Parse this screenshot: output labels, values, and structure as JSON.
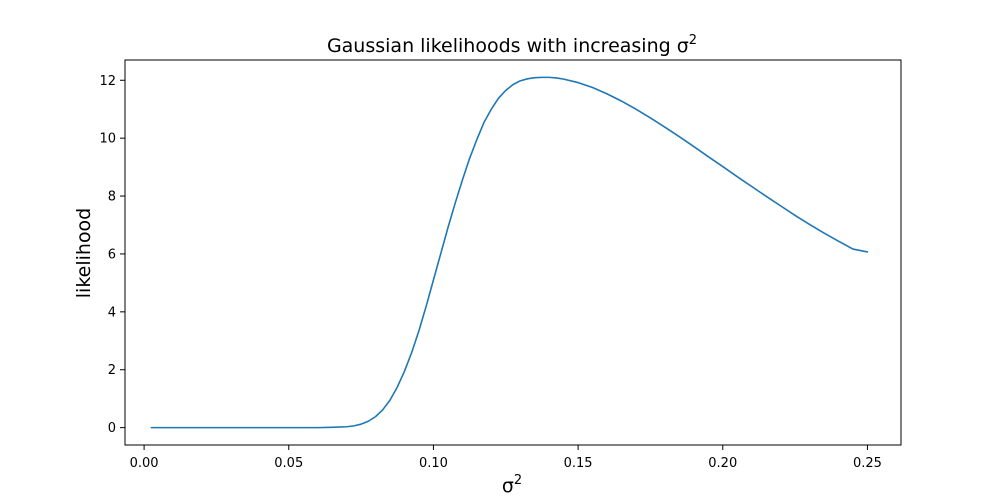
{
  "chart_data": {
    "type": "line",
    "title": "Gaussian likelihoods with increasing σ²",
    "title_parts": {
      "main": "Gaussian likelihoods with increasing σ",
      "sup": "2"
    },
    "xlabel": "σ²",
    "xlabel_parts": {
      "main": "σ",
      "sup": "2"
    },
    "ylabel": "likelihood",
    "xlim": [
      -0.0066,
      0.2616
    ],
    "ylim": [
      -0.6,
      12.7
    ],
    "xticks": [
      0.0,
      0.05,
      0.1,
      0.15,
      0.2,
      0.25
    ],
    "xtick_labels": [
      "0.00",
      "0.05",
      "0.10",
      "0.15",
      "0.20",
      "0.25"
    ],
    "yticks": [
      0,
      2,
      4,
      6,
      8,
      10,
      12
    ],
    "ytick_labels": [
      "0",
      "2",
      "4",
      "6",
      "8",
      "10",
      "12"
    ],
    "grid": false,
    "legend": "none",
    "series": [
      {
        "color": "#1f77b4",
        "x": [
          0.0025,
          0.02,
          0.04,
          0.06,
          0.065,
          0.07,
          0.0725,
          0.075,
          0.0775,
          0.08,
          0.0825,
          0.085,
          0.0875,
          0.09,
          0.0925,
          0.095,
          0.0975,
          0.1,
          0.1025,
          0.105,
          0.1075,
          0.11,
          0.1125,
          0.115,
          0.1175,
          0.12,
          0.1225,
          0.125,
          0.1275,
          0.13,
          0.1325,
          0.135,
          0.1375,
          0.14,
          0.1425,
          0.145,
          0.15,
          0.155,
          0.16,
          0.165,
          0.17,
          0.175,
          0.18,
          0.185,
          0.19,
          0.195,
          0.2,
          0.205,
          0.21,
          0.215,
          0.22,
          0.225,
          0.23,
          0.235,
          0.24,
          0.245,
          0.25
        ],
        "y": [
          0.0,
          0.0,
          0.0,
          0.0,
          0.01,
          0.03,
          0.06,
          0.12,
          0.22,
          0.38,
          0.62,
          0.95,
          1.4,
          1.95,
          2.6,
          3.35,
          4.2,
          5.1,
          6.0,
          6.9,
          7.75,
          8.55,
          9.3,
          9.95,
          10.55,
          11.0,
          11.38,
          11.65,
          11.85,
          11.98,
          12.05,
          12.09,
          12.1,
          12.1,
          12.08,
          12.04,
          11.92,
          11.75,
          11.53,
          11.28,
          11.0,
          10.7,
          10.38,
          10.05,
          9.71,
          9.36,
          9.02,
          8.67,
          8.33,
          7.99,
          7.66,
          7.33,
          7.02,
          6.72,
          6.44,
          6.17,
          6.07
        ]
      }
    ]
  }
}
